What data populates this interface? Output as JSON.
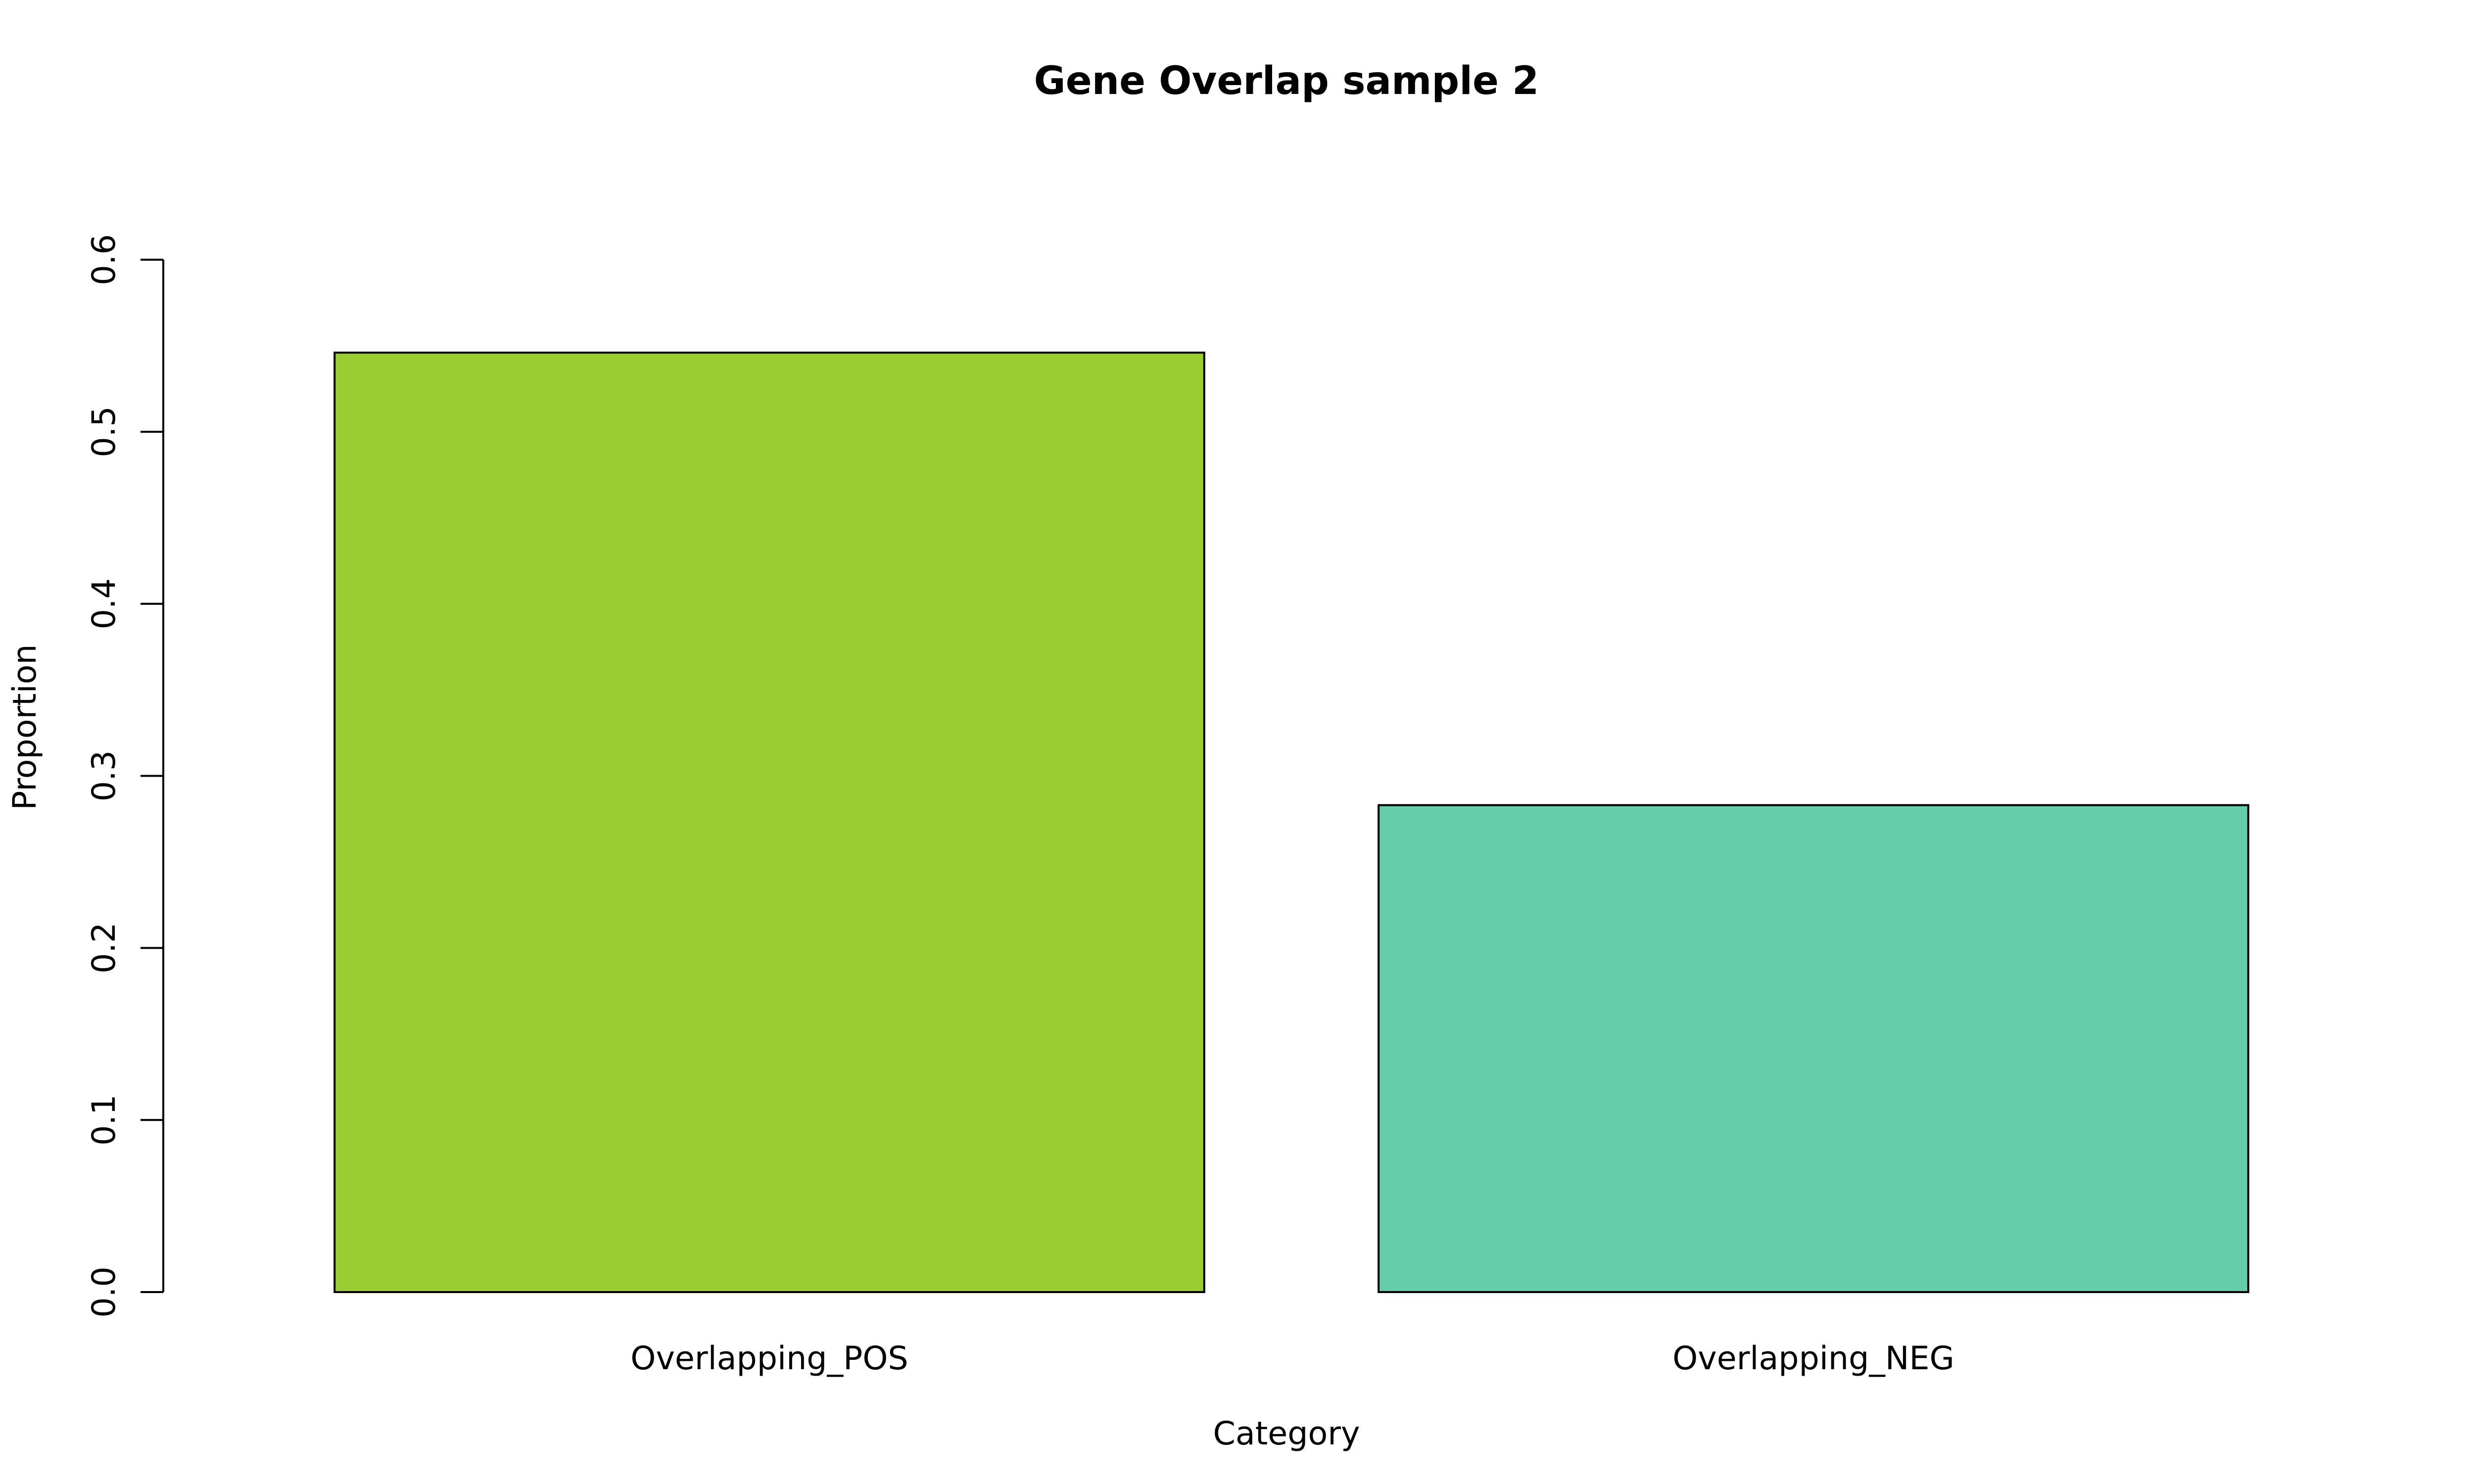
{
  "chart_data": {
    "type": "bar",
    "title": "Gene Overlap sample 2",
    "xlabel": "Category",
    "ylabel": "Proportion",
    "categories": [
      "Overlapping_POS",
      "Overlapping_NEG"
    ],
    "values": [
      0.546,
      0.283
    ],
    "colors": [
      "#9acd32",
      "#66cdaa"
    ],
    "ylim": [
      0,
      0.6
    ],
    "yticks": [
      "0.0",
      "0.1",
      "0.2",
      "0.3",
      "0.4",
      "0.5",
      "0.6"
    ],
    "grid": false,
    "legend": "none"
  }
}
